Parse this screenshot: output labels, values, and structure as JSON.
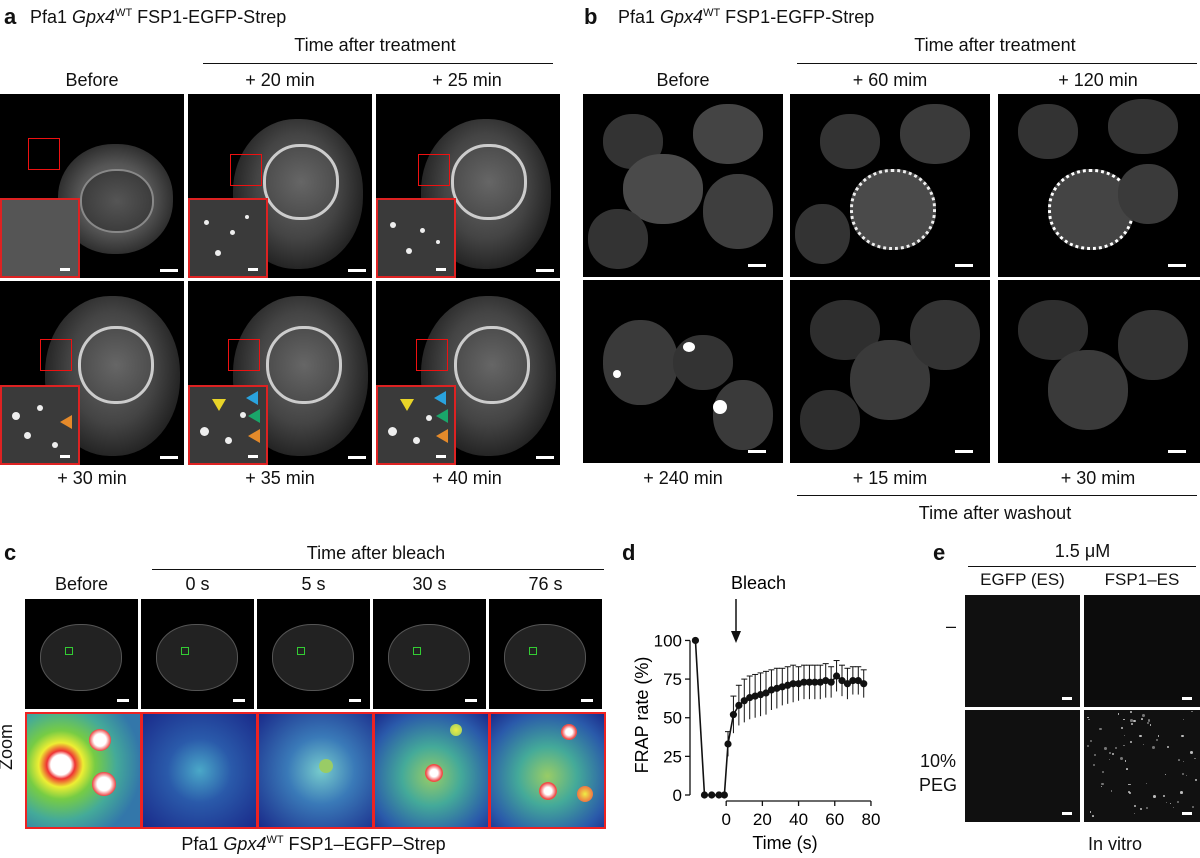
{
  "panels": {
    "a": {
      "letter": "a",
      "title_pre": "Pfa1 ",
      "title_gene": "Gpx4",
      "title_sup": "WT",
      "title_post": " FSP1-EGFP-Strep",
      "group_label": "Time after treatment",
      "top_labels": [
        "Before",
        "+ 20 min",
        "+ 25 min"
      ],
      "bottom_labels": [
        "+ 30 min",
        "+ 35 min",
        "+ 40 min"
      ]
    },
    "b": {
      "letter": "b",
      "title_pre": "Pfa1 ",
      "title_gene": "Gpx4",
      "title_sup": "WT",
      "title_post": " FSP1-EGFP-Strep",
      "group_label": "Time after treatment",
      "top_labels": [
        "Before",
        "+ 60 mim",
        "+ 120 min"
      ],
      "bottom_labels": [
        "+ 240 min",
        "+ 15 mim",
        "+ 30 mim"
      ],
      "washout_label": "Time after washout"
    },
    "c": {
      "letter": "c",
      "group_label": "Time after bleach",
      "labels": [
        "Before",
        "0 s",
        "5 s",
        "30 s",
        "76 s"
      ],
      "row_label": "Zoom",
      "caption_pre": "Pfa1 ",
      "caption_gene": "Gpx4",
      "caption_sup": "WT",
      "caption_post": " FSP1–EGFP–Strep"
    },
    "d": {
      "letter": "d",
      "annotation": "Bleach"
    },
    "e": {
      "letter": "e",
      "concentration": "1.5 μM",
      "columns": [
        "EGFP (ES)",
        "FSP1–ES"
      ],
      "row_minus": "–",
      "row_peg_line1": "10%",
      "row_peg_line2": "PEG",
      "footer": "In vitro"
    }
  },
  "chart_data": {
    "type": "line",
    "xlabel": "Time (s)",
    "ylabel": "FRAP rate (%)",
    "xlim": [
      -20,
      85
    ],
    "ylim": [
      0,
      110
    ],
    "xticks": [
      0,
      20,
      40,
      60,
      80
    ],
    "yticks": [
      0,
      25,
      50,
      75,
      100
    ],
    "series": [
      {
        "x": [
          -17,
          -12,
          -8,
          -4,
          -1,
          1,
          4,
          7,
          10,
          13,
          16,
          19,
          22,
          25,
          28,
          31,
          34,
          37,
          40,
          43,
          46,
          49,
          52,
          55,
          58,
          61,
          64,
          67,
          70,
          73,
          76
        ],
        "y": [
          100,
          0,
          0,
          0,
          0,
          33,
          52,
          58,
          61,
          63,
          64,
          65,
          66,
          68,
          69,
          70,
          71,
          72,
          72,
          73,
          73,
          73,
          73,
          74,
          73,
          77,
          74,
          72,
          74,
          74,
          72
        ],
        "err": [
          0,
          0,
          0,
          0,
          0,
          8,
          12,
          13,
          14,
          14,
          14,
          14,
          14,
          13,
          13,
          12,
          12,
          12,
          11,
          11,
          11,
          11,
          11,
          11,
          10,
          10,
          10,
          10,
          9,
          9,
          9
        ]
      }
    ]
  },
  "colors": {
    "inset_border": "#dd2222",
    "arrow_yellow": "#e8d428",
    "arrow_blue": "#2aa3de",
    "arrow_green": "#1aa66a",
    "arrow_orange": "#e58a2a"
  }
}
